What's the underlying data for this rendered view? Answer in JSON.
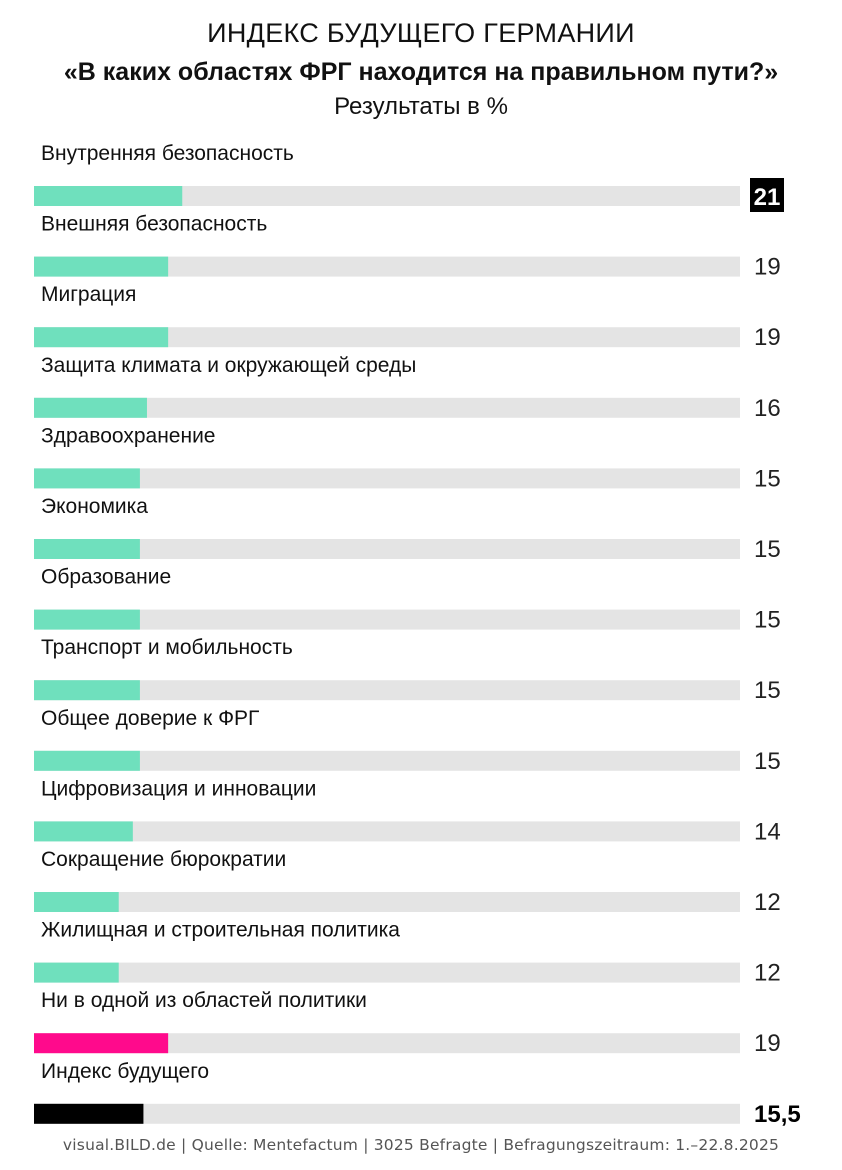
{
  "header": {
    "title": "ИНДЕКС БУДУЩЕГО ГЕРМАНИИ",
    "question": "«В каких областях ФРГ находится на правильном пути?»",
    "subtitle": "Результаты в %"
  },
  "footer": {
    "source": "visual.BILD.de | Quelle: Mentefactum | 3025 Befragte | Befragungszeitraum: 1.–22.8.2025"
  },
  "colors": {
    "bar_default": "#6fe0bd",
    "bar_highlight": "#ff0a8c",
    "bar_index": "#000000",
    "track": "#e4e4e4",
    "top_badge": "#000000"
  },
  "chart_data": {
    "type": "bar",
    "orientation": "horizontal",
    "xlim": [
      0,
      100
    ],
    "grid": false,
    "legend": "none",
    "categories": [
      "Внутренняя безопасность",
      "Внешняя безопасность",
      "Миграция",
      "Защита климата и окружающей среды",
      "Здравоохранение",
      "Экономика",
      "Образование",
      "Транспорт и мобильность",
      "Общее доверие к ФРГ",
      "Цифровизация и инновации",
      "Сокращение бюрократии",
      "Жилищная и строительная политика",
      "Ни в одной из областей политики",
      "Индекс будущего"
    ],
    "values": [
      21,
      19,
      19,
      16,
      15,
      15,
      15,
      15,
      15,
      14,
      12,
      12,
      19,
      15.5
    ],
    "value_labels": [
      "21",
      "19",
      "19",
      "16",
      "15",
      "15",
      "15",
      "15",
      "15",
      "14",
      "12",
      "12",
      "19",
      "15,5"
    ],
    "bar_styles": [
      "top",
      "default",
      "default",
      "default",
      "default",
      "default",
      "default",
      "default",
      "default",
      "default",
      "default",
      "default",
      "highlight",
      "index"
    ]
  }
}
